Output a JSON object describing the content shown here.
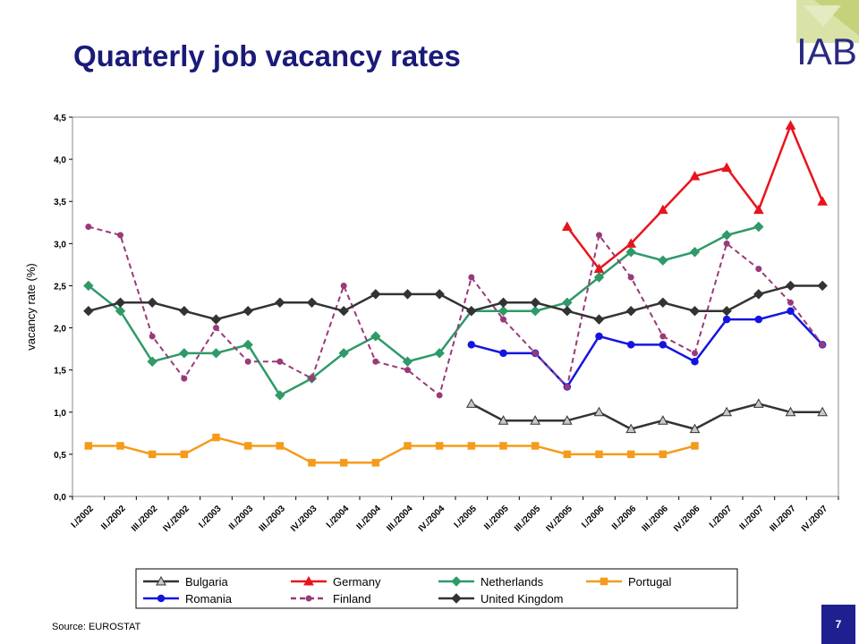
{
  "slide": {
    "title": "Quarterly job vacancy rates",
    "source": "Source: EUROSTAT",
    "page_number": "7",
    "logo_text": "IAB"
  },
  "chart_data": {
    "type": "line",
    "title": "",
    "ylabel": "vacancy rate (%)",
    "xlabel": "",
    "ylim": [
      0,
      4.5
    ],
    "y_ticks": [
      "0,0",
      "0,5",
      "1,0",
      "1,5",
      "2,0",
      "2,5",
      "3,0",
      "3,5",
      "4,0",
      "4,5"
    ],
    "categories": [
      "I./2002",
      "II./2002",
      "III./2002",
      "IV./2002",
      "I./2003",
      "II./2003",
      "III./2003",
      "IV./2003",
      "I./2004",
      "II./2004",
      "III./2004",
      "IV./2004",
      "I./2005",
      "II./2005",
      "III./2005",
      "IV./2005",
      "I./2006",
      "II./2006",
      "III./2006",
      "IV./2006",
      "I./2007",
      "II./2007",
      "III./2007",
      "IV./2007"
    ],
    "legend_position": "bottom",
    "series": [
      {
        "name": "Bulgaria",
        "color": "#333333",
        "marker": "triangle-open",
        "dash": false,
        "values": [
          null,
          null,
          null,
          null,
          null,
          null,
          null,
          null,
          null,
          null,
          null,
          null,
          1.1,
          0.9,
          0.9,
          0.9,
          1.0,
          0.8,
          0.9,
          0.8,
          1.0,
          1.1,
          1.0,
          1.0
        ]
      },
      {
        "name": "Germany",
        "color": "#e8141c",
        "marker": "triangle",
        "dash": false,
        "values": [
          null,
          null,
          null,
          null,
          null,
          null,
          null,
          null,
          null,
          null,
          null,
          null,
          null,
          null,
          null,
          3.2,
          2.7,
          3.0,
          3.4,
          3.8,
          3.9,
          3.4,
          4.4,
          3.5
        ]
      },
      {
        "name": "Netherlands",
        "color": "#2e9a68",
        "marker": "diamond",
        "dash": false,
        "values": [
          2.5,
          2.2,
          1.6,
          1.7,
          1.7,
          1.8,
          1.2,
          1.4,
          1.7,
          1.9,
          1.6,
          1.7,
          2.2,
          2.2,
          2.2,
          2.3,
          2.6,
          2.9,
          2.8,
          2.9,
          3.1,
          3.2,
          null,
          null
        ]
      },
      {
        "name": "Portugal",
        "color": "#f59b1a",
        "marker": "square",
        "dash": false,
        "values": [
          0.6,
          0.6,
          0.5,
          0.5,
          0.7,
          0.6,
          0.6,
          0.4,
          0.4,
          0.4,
          0.6,
          0.6,
          0.6,
          0.6,
          0.6,
          0.5,
          0.5,
          0.5,
          0.5,
          0.6,
          null,
          null,
          null,
          null
        ]
      },
      {
        "name": "Romania",
        "color": "#1414e0",
        "marker": "circle",
        "dash": false,
        "values": [
          null,
          null,
          null,
          null,
          null,
          null,
          null,
          null,
          null,
          null,
          null,
          null,
          1.8,
          1.7,
          1.7,
          1.3,
          1.9,
          1.8,
          1.8,
          1.6,
          2.1,
          2.1,
          2.2,
          1.8
        ]
      },
      {
        "name": "Finland",
        "color": "#9a3a7a",
        "marker": "circle-small",
        "dash": true,
        "values": [
          3.2,
          3.1,
          1.9,
          1.4,
          2.0,
          1.6,
          1.6,
          1.4,
          2.5,
          1.6,
          1.5,
          1.2,
          2.6,
          2.1,
          1.7,
          1.3,
          3.1,
          2.6,
          1.9,
          1.7,
          3.0,
          2.7,
          2.3,
          1.8
        ]
      },
      {
        "name": "United Kingdom",
        "color": "#333333",
        "marker": "diamond",
        "dash": false,
        "values": [
          2.2,
          2.3,
          2.3,
          2.2,
          2.1,
          2.2,
          2.3,
          2.3,
          2.2,
          2.4,
          2.4,
          2.4,
          2.2,
          2.3,
          2.3,
          2.2,
          2.1,
          2.2,
          2.3,
          2.2,
          2.2,
          2.4,
          2.5,
          2.5
        ]
      }
    ]
  }
}
